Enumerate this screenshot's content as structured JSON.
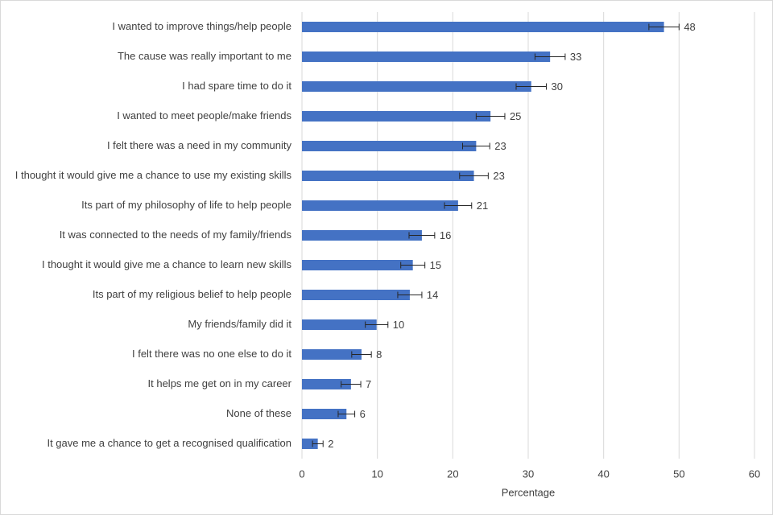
{
  "chart_data": {
    "type": "bar",
    "orientation": "horizontal",
    "x_label": "Percentage",
    "categories": [
      "I wanted to improve things/help people",
      "The cause was really important to me",
      "I had spare time to do it",
      "I wanted to meet people/make friends",
      "I felt there was a need in my community",
      "I thought it would give me a chance to use my existing skills",
      "Its part of my philosophy of life to help people",
      "It was connected to the needs of my family/friends",
      "I thought it would give me a chance to learn new skills",
      "Its part of my religious belief to help people",
      "My friends/family did it",
      "I felt there was no one else to do it",
      "It helps me get on in my career",
      "None of these",
      "It gave me a chance to get a recognised qualification"
    ],
    "values": [
      48.0,
      32.9,
      30.4,
      25.0,
      23.1,
      22.8,
      20.7,
      15.9,
      14.7,
      14.3,
      9.9,
      7.9,
      6.5,
      5.9,
      2.1
    ],
    "value_labels": [
      "48",
      "33",
      "30",
      "25",
      "23",
      "23",
      "21",
      "16",
      "15",
      "14",
      "10",
      "8",
      "7",
      "6",
      "2"
    ],
    "errors": [
      2.0,
      2.0,
      2.0,
      1.9,
      1.8,
      1.9,
      1.8,
      1.7,
      1.6,
      1.6,
      1.5,
      1.3,
      1.3,
      1.1,
      0.7
    ],
    "color": "#4472c4",
    "xlim": [
      0,
      60
    ],
    "xticks": [
      0,
      10,
      20,
      30,
      40,
      50,
      60
    ],
    "grid": true
  }
}
